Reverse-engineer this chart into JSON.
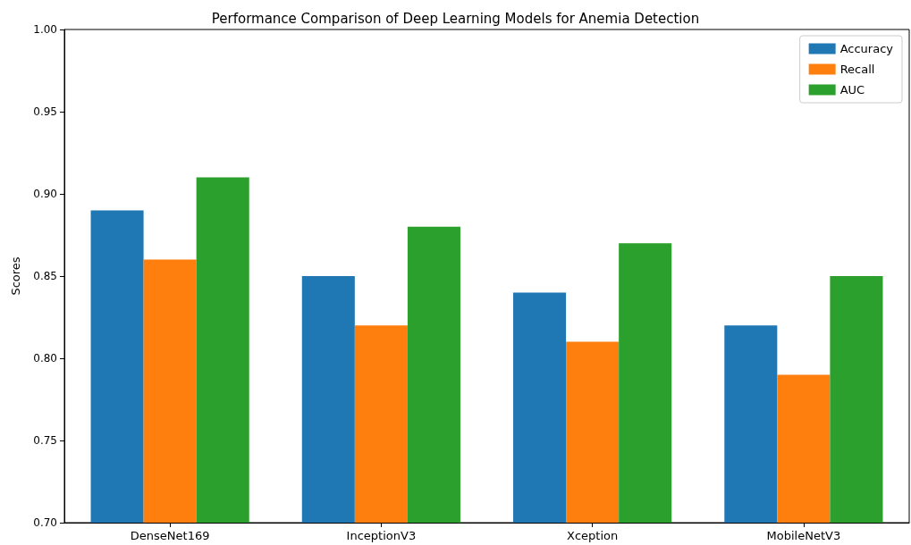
{
  "chart_data": {
    "type": "bar",
    "title": "Performance Comparison of Deep Learning Models for Anemia Detection",
    "ylabel": "Scores",
    "categories": [
      "DenseNet169",
      "InceptionV3",
      "Xception",
      "MobileNetV3"
    ],
    "series": [
      {
        "name": "Accuracy",
        "color": "#1f77b4",
        "values": [
          0.89,
          0.85,
          0.84,
          0.82
        ]
      },
      {
        "name": "Recall",
        "color": "#ff7f0e",
        "values": [
          0.86,
          0.82,
          0.81,
          0.79
        ]
      },
      {
        "name": "AUC",
        "color": "#2ca02c",
        "values": [
          0.91,
          0.88,
          0.87,
          0.85
        ]
      }
    ],
    "ylim": [
      0.7,
      1.0
    ],
    "yticks": [
      {
        "value": 0.7,
        "label": "0.70"
      },
      {
        "value": 0.75,
        "label": "0.75"
      },
      {
        "value": 0.8,
        "label": "0.80"
      },
      {
        "value": 0.85,
        "label": "0.85"
      },
      {
        "value": 0.9,
        "label": "0.90"
      },
      {
        "value": 0.95,
        "label": "0.95"
      },
      {
        "value": 1.0,
        "label": "1.00"
      }
    ],
    "grid": false,
    "legend": "top right"
  }
}
